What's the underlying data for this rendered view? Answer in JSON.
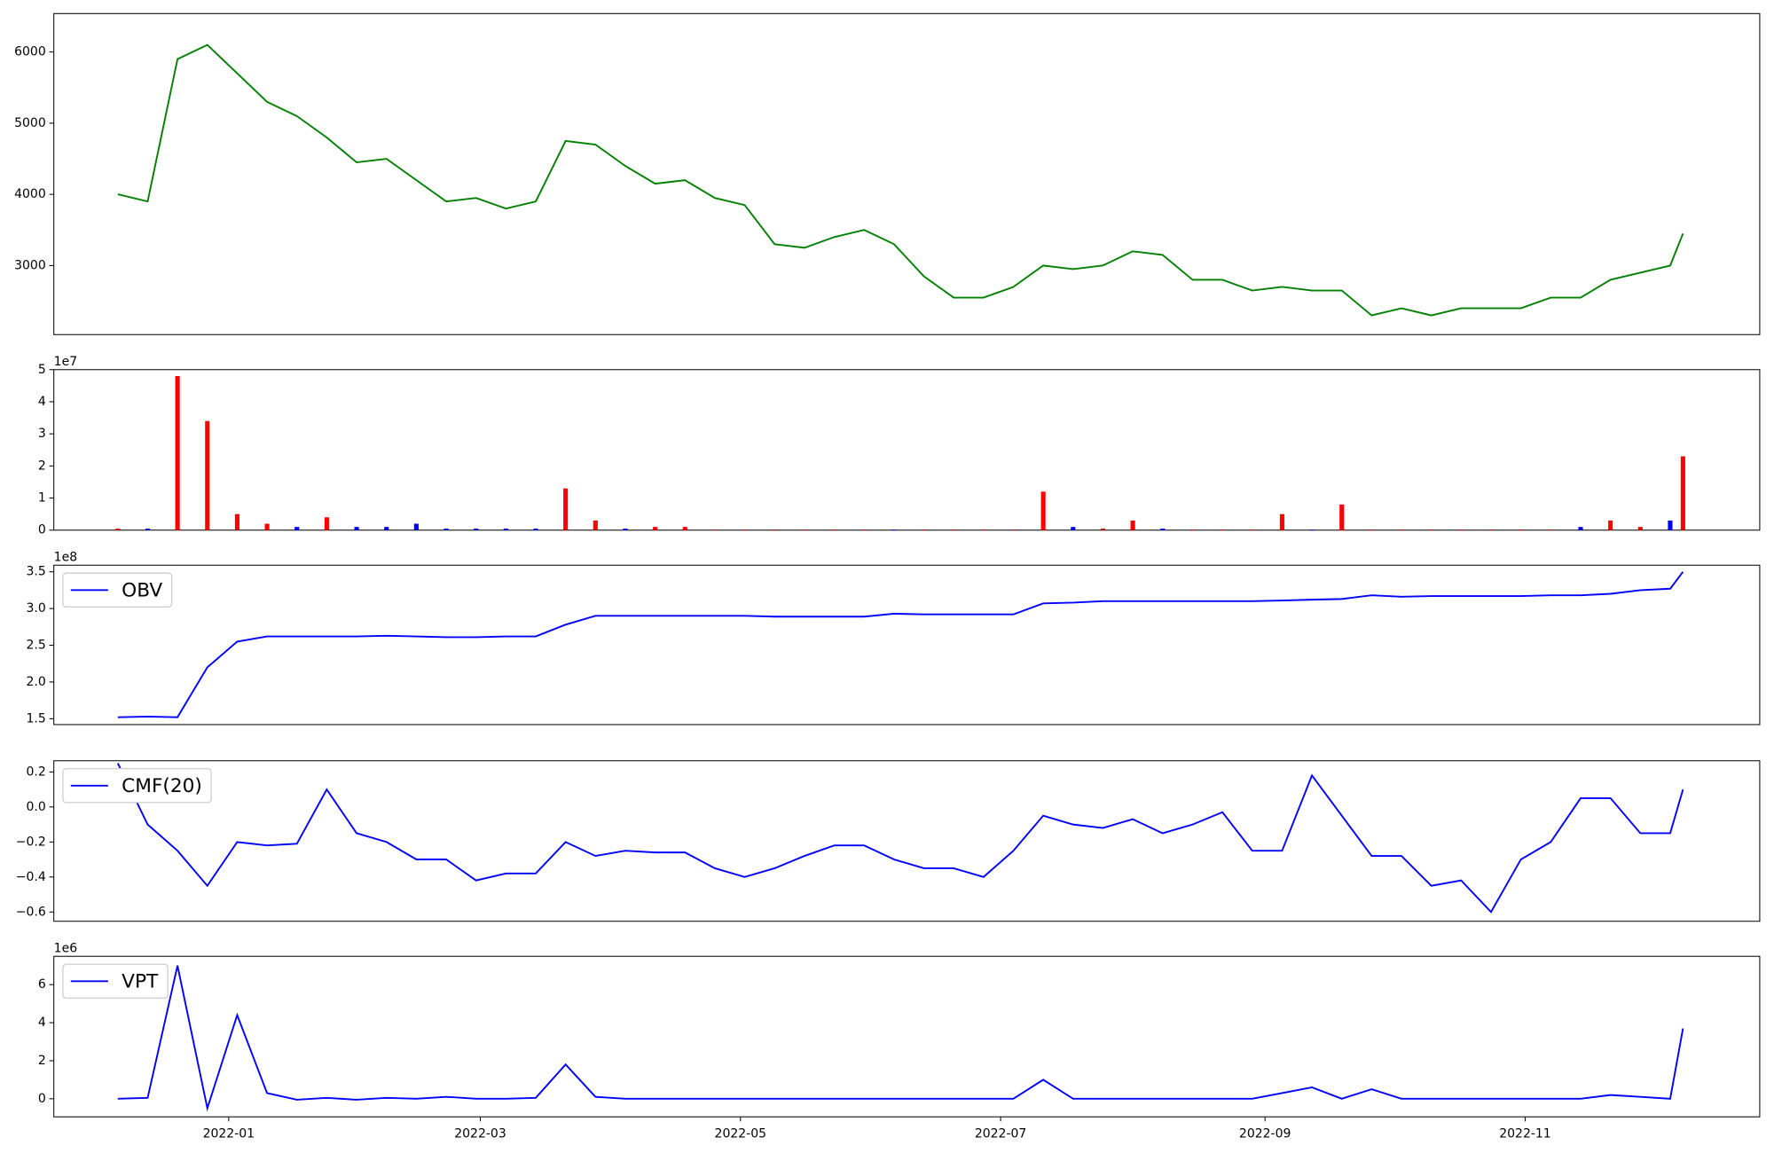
{
  "chart_data": [
    {
      "type": "line",
      "color": "#008000",
      "x": [
        "2021-12-06",
        "2021-12-13",
        "2021-12-20",
        "2021-12-27",
        "2022-01-03",
        "2022-01-10",
        "2022-01-17",
        "2022-01-24",
        "2022-01-31",
        "2022-02-07",
        "2022-02-14",
        "2022-02-21",
        "2022-02-28",
        "2022-03-07",
        "2022-03-14",
        "2022-03-21",
        "2022-03-28",
        "2022-04-04",
        "2022-04-11",
        "2022-04-18",
        "2022-04-25",
        "2022-05-02",
        "2022-05-09",
        "2022-05-16",
        "2022-05-23",
        "2022-05-30",
        "2022-06-06",
        "2022-06-13",
        "2022-06-20",
        "2022-06-27",
        "2022-07-04",
        "2022-07-11",
        "2022-07-18",
        "2022-07-25",
        "2022-08-01",
        "2022-08-08",
        "2022-08-15",
        "2022-08-22",
        "2022-08-29",
        "2022-09-05",
        "2022-09-12",
        "2022-09-19",
        "2022-09-26",
        "2022-10-03",
        "2022-10-10",
        "2022-10-17",
        "2022-10-24",
        "2022-10-31",
        "2022-11-07",
        "2022-11-14",
        "2022-11-21",
        "2022-11-28",
        "2022-12-05",
        "2022-12-08"
      ],
      "values": [
        4000,
        3900,
        5900,
        6100,
        5700,
        5300,
        5100,
        4800,
        4450,
        4500,
        4200,
        3900,
        3950,
        3800,
        3900,
        4750,
        4700,
        4400,
        4150,
        4200,
        3950,
        3850,
        3300,
        3250,
        3400,
        3500,
        3300,
        2850,
        2550,
        2550,
        2700,
        3000,
        2950,
        3000,
        3200,
        3150,
        2800,
        2800,
        2650,
        2700,
        2650,
        2650,
        2300,
        2400,
        2300,
        2400,
        2400,
        2400,
        2550,
        2550,
        2800,
        2900,
        3000,
        3450
      ],
      "ylim": [
        2030,
        6540
      ],
      "yticks": [
        3000,
        4000,
        5000,
        6000
      ],
      "xlim": [
        "2021-11-21",
        "2022-12-26"
      ]
    },
    {
      "type": "bar",
      "offset_label": "1e7",
      "x": [
        "2021-12-06",
        "2021-12-13",
        "2021-12-20",
        "2021-12-27",
        "2022-01-03",
        "2022-01-10",
        "2022-01-17",
        "2022-01-24",
        "2022-01-31",
        "2022-02-07",
        "2022-02-14",
        "2022-02-21",
        "2022-02-28",
        "2022-03-07",
        "2022-03-14",
        "2022-03-21",
        "2022-03-28",
        "2022-04-04",
        "2022-04-11",
        "2022-04-18",
        "2022-04-25",
        "2022-05-02",
        "2022-05-09",
        "2022-05-16",
        "2022-05-23",
        "2022-05-30",
        "2022-06-06",
        "2022-06-13",
        "2022-06-20",
        "2022-06-27",
        "2022-07-04",
        "2022-07-11",
        "2022-07-18",
        "2022-07-25",
        "2022-08-01",
        "2022-08-08",
        "2022-08-15",
        "2022-08-22",
        "2022-08-29",
        "2022-09-05",
        "2022-09-12",
        "2022-09-19",
        "2022-09-26",
        "2022-10-03",
        "2022-10-10",
        "2022-10-17",
        "2022-10-24",
        "2022-10-31",
        "2022-11-07",
        "2022-11-14",
        "2022-11-21",
        "2022-11-28",
        "2022-12-05",
        "2022-12-08"
      ],
      "values": [
        0.05,
        0.05,
        4.8,
        3.4,
        0.5,
        0.2,
        0.1,
        0.4,
        0.1,
        0.1,
        0.2,
        0.05,
        0.05,
        0.05,
        0.05,
        1.3,
        0.3,
        0.05,
        0.1,
        0.1,
        0.02,
        0.02,
        0.02,
        0.02,
        0.02,
        0.02,
        0.02,
        0.02,
        0.02,
        0.02,
        0.02,
        1.2,
        0.1,
        0.05,
        0.3,
        0.05,
        0.02,
        0.02,
        0.02,
        0.5,
        0.02,
        0.8,
        0.02,
        0.02,
        0.02,
        0.02,
        0.02,
        0.02,
        0.02,
        0.1,
        0.3,
        0.1,
        0.3,
        2.3
      ],
      "colors": [
        "#ff0000",
        "#0000ff",
        "#ff0000",
        "#ff0000",
        "#ff0000",
        "#ff0000",
        "#0000ff",
        "#ff0000",
        "#0000ff",
        "#0000ff",
        "#0000ff",
        "#0000ff",
        "#0000ff",
        "#0000ff",
        "#0000ff",
        "#ff0000",
        "#ff0000",
        "#0000ff",
        "#ff0000",
        "#ff0000",
        "#ff0000",
        "#ff0000",
        "#ff0000",
        "#ff0000",
        "#ff0000",
        "#ff0000",
        "#0000ff",
        "#ff0000",
        "#ff0000",
        "#ff0000",
        "#ff0000",
        "#ff0000",
        "#0000ff",
        "#ff0000",
        "#ff0000",
        "#0000ff",
        "#ff0000",
        "#ff0000",
        "#ff0000",
        "#ff0000",
        "#0000ff",
        "#ff0000",
        "#ff0000",
        "#ff0000",
        "#ff0000",
        "#ff0000",
        "#ff0000",
        "#ff0000",
        "#ff0000",
        "#0000ff",
        "#ff0000",
        "#ff0000",
        "#0000ff",
        "#ff0000"
      ],
      "ylim": [
        0,
        5
      ],
      "yticks": [
        0,
        1,
        2,
        3,
        4,
        5
      ],
      "xlim": [
        "2021-11-21",
        "2022-12-26"
      ]
    },
    {
      "type": "line",
      "color": "#0000ff",
      "offset_label": "1e8",
      "legend": "OBV",
      "x": [
        "2021-12-06",
        "2021-12-13",
        "2021-12-20",
        "2021-12-27",
        "2022-01-03",
        "2022-01-10",
        "2022-01-17",
        "2022-01-24",
        "2022-01-31",
        "2022-02-07",
        "2022-02-14",
        "2022-02-21",
        "2022-02-28",
        "2022-03-07",
        "2022-03-14",
        "2022-03-21",
        "2022-03-28",
        "2022-04-04",
        "2022-04-11",
        "2022-04-18",
        "2022-04-25",
        "2022-05-02",
        "2022-05-09",
        "2022-05-16",
        "2022-05-23",
        "2022-05-30",
        "2022-06-06",
        "2022-06-13",
        "2022-06-20",
        "2022-06-27",
        "2022-07-04",
        "2022-07-11",
        "2022-07-18",
        "2022-07-25",
        "2022-08-01",
        "2022-08-08",
        "2022-08-15",
        "2022-08-22",
        "2022-08-29",
        "2022-09-05",
        "2022-09-12",
        "2022-09-19",
        "2022-09-26",
        "2022-10-03",
        "2022-10-10",
        "2022-10-17",
        "2022-10-24",
        "2022-10-31",
        "2022-11-07",
        "2022-11-14",
        "2022-11-21",
        "2022-11-28",
        "2022-12-05",
        "2022-12-08"
      ],
      "values": [
        1.52,
        1.53,
        1.52,
        2.2,
        2.55,
        2.62,
        2.62,
        2.62,
        2.62,
        2.63,
        2.62,
        2.61,
        2.61,
        2.62,
        2.62,
        2.78,
        2.9,
        2.9,
        2.9,
        2.9,
        2.9,
        2.9,
        2.89,
        2.89,
        2.89,
        2.89,
        2.93,
        2.92,
        2.92,
        2.92,
        2.92,
        3.07,
        3.08,
        3.1,
        3.1,
        3.1,
        3.1,
        3.1,
        3.1,
        3.11,
        3.12,
        3.13,
        3.18,
        3.16,
        3.17,
        3.17,
        3.17,
        3.17,
        3.18,
        3.18,
        3.2,
        3.25,
        3.27,
        3.5
      ],
      "ylim": [
        1.42,
        3.59
      ],
      "yticks": [
        {
          "value": 1.5,
          "label": "1.5"
        },
        {
          "value": 2.0,
          "label": "2.0"
        },
        {
          "value": 2.5,
          "label": "2.5"
        },
        {
          "value": 3.0,
          "label": "3.0"
        },
        {
          "value": 3.5,
          "label": "3.5"
        }
      ],
      "xlim": [
        "2021-11-21",
        "2022-12-26"
      ]
    },
    {
      "type": "line",
      "color": "#0000ff",
      "legend": "CMF(20)",
      "x": [
        "2021-12-06",
        "2021-12-13",
        "2021-12-20",
        "2021-12-27",
        "2022-01-03",
        "2022-01-10",
        "2022-01-17",
        "2022-01-24",
        "2022-01-31",
        "2022-02-07",
        "2022-02-14",
        "2022-02-21",
        "2022-02-28",
        "2022-03-07",
        "2022-03-14",
        "2022-03-21",
        "2022-03-28",
        "2022-04-04",
        "2022-04-11",
        "2022-04-18",
        "2022-04-25",
        "2022-05-02",
        "2022-05-09",
        "2022-05-16",
        "2022-05-23",
        "2022-05-30",
        "2022-06-06",
        "2022-06-13",
        "2022-06-20",
        "2022-06-27",
        "2022-07-04",
        "2022-07-11",
        "2022-07-18",
        "2022-07-25",
        "2022-08-01",
        "2022-08-08",
        "2022-08-15",
        "2022-08-22",
        "2022-08-29",
        "2022-09-05",
        "2022-09-12",
        "2022-09-19",
        "2022-09-26",
        "2022-10-03",
        "2022-10-10",
        "2022-10-17",
        "2022-10-24",
        "2022-10-31",
        "2022-11-07",
        "2022-11-14",
        "2022-11-21",
        "2022-11-28",
        "2022-12-05",
        "2022-12-08"
      ],
      "values": [
        0.25,
        -0.1,
        -0.25,
        -0.45,
        -0.2,
        -0.22,
        -0.21,
        0.1,
        -0.15,
        -0.2,
        -0.3,
        -0.3,
        -0.42,
        -0.38,
        -0.38,
        -0.2,
        -0.28,
        -0.25,
        -0.26,
        -0.26,
        -0.35,
        -0.4,
        -0.35,
        -0.28,
        -0.22,
        -0.22,
        -0.3,
        -0.35,
        -0.35,
        -0.4,
        -0.25,
        -0.05,
        -0.1,
        -0.12,
        -0.07,
        -0.15,
        -0.1,
        -0.03,
        -0.25,
        -0.25,
        0.18,
        -0.05,
        -0.28,
        -0.28,
        -0.45,
        -0.42,
        -0.6,
        -0.3,
        -0.2,
        0.05,
        0.05,
        -0.15,
        -0.15,
        0.1
      ],
      "ylim": [
        -0.653,
        0.264
      ],
      "yticks": [
        {
          "value": -0.6,
          "label": "−0.6"
        },
        {
          "value": -0.4,
          "label": "−0.4"
        },
        {
          "value": -0.2,
          "label": "−0.2"
        },
        {
          "value": 0.0,
          "label": "0.0"
        },
        {
          "value": 0.2,
          "label": "0.2"
        }
      ],
      "xlim": [
        "2021-11-21",
        "2022-12-26"
      ]
    },
    {
      "type": "line",
      "color": "#0000ff",
      "offset_label": "1e6",
      "legend": "VPT",
      "x": [
        "2021-12-06",
        "2021-12-13",
        "2021-12-20",
        "2021-12-27",
        "2022-01-03",
        "2022-01-10",
        "2022-01-17",
        "2022-01-24",
        "2022-01-31",
        "2022-02-07",
        "2022-02-14",
        "2022-02-21",
        "2022-02-28",
        "2022-03-07",
        "2022-03-14",
        "2022-03-21",
        "2022-03-28",
        "2022-04-04",
        "2022-04-11",
        "2022-04-18",
        "2022-04-25",
        "2022-05-02",
        "2022-05-09",
        "2022-05-16",
        "2022-05-23",
        "2022-05-30",
        "2022-06-06",
        "2022-06-13",
        "2022-06-20",
        "2022-06-27",
        "2022-07-04",
        "2022-07-11",
        "2022-07-18",
        "2022-07-25",
        "2022-08-01",
        "2022-08-08",
        "2022-08-15",
        "2022-08-22",
        "2022-08-29",
        "2022-09-05",
        "2022-09-12",
        "2022-09-19",
        "2022-09-26",
        "2022-10-03",
        "2022-10-10",
        "2022-10-17",
        "2022-10-24",
        "2022-10-31",
        "2022-11-07",
        "2022-11-14",
        "2022-11-21",
        "2022-11-28",
        "2022-12-05",
        "2022-12-08"
      ],
      "values": [
        0,
        0.05,
        7.0,
        -0.5,
        4.4,
        0.3,
        -0.05,
        0.05,
        -0.05,
        0.05,
        0,
        0.1,
        0,
        0,
        0.05,
        1.8,
        0.1,
        0,
        0,
        0,
        0,
        0,
        0,
        0,
        0,
        0,
        0,
        0,
        0,
        0,
        0,
        1.0,
        0,
        0,
        0,
        0,
        0,
        0,
        0,
        0.3,
        0.6,
        0,
        0.5,
        0,
        0,
        0,
        0,
        0,
        0,
        0,
        0.2,
        0.1,
        0,
        3.7
      ],
      "ylim": [
        -0.95,
        7.49
      ],
      "yticks": [
        0,
        2,
        4,
        6
      ],
      "xlim": [
        "2021-11-21",
        "2022-12-26"
      ],
      "xticks": [
        {
          "value": "2022-01-01",
          "label": "2022-01"
        },
        {
          "value": "2022-03-01",
          "label": "2022-03"
        },
        {
          "value": "2022-05-01",
          "label": "2022-05"
        },
        {
          "value": "2022-07-01",
          "label": "2022-07"
        },
        {
          "value": "2022-09-01",
          "label": "2022-09"
        },
        {
          "value": "2022-11-01",
          "label": "2022-11"
        }
      ]
    }
  ]
}
